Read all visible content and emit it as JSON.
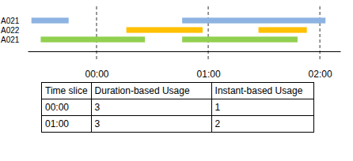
{
  "chart_data": {
    "type": "timeline",
    "categories": [
      "A021",
      "A022",
      "A021"
    ],
    "series": [
      {
        "color": "#8db3e2",
        "values": [
          [
            -35,
            -15
          ],
          [
            46,
            123
          ]
        ]
      },
      {
        "color": "#ffc000",
        "values": [
          [
            16,
            57
          ],
          [
            87,
            113
          ]
        ]
      },
      {
        "color": "#92d050",
        "values": [
          [
            -30,
            26
          ],
          [
            46,
            108
          ]
        ]
      }
    ],
    "xlim": [
      -37,
      131
    ],
    "xticks": [
      {
        "value": 0,
        "label": "00:00"
      },
      {
        "value": 60,
        "label": "01:00"
      },
      {
        "value": 120,
        "label": "02:00"
      }
    ],
    "grid": true
  },
  "table": {
    "header": [
      "Time slice",
      "Duration-based Usage",
      "Instant-based Usage"
    ],
    "rows": [
      [
        "00:00",
        3,
        1
      ],
      [
        "01:00",
        3,
        2
      ]
    ]
  }
}
